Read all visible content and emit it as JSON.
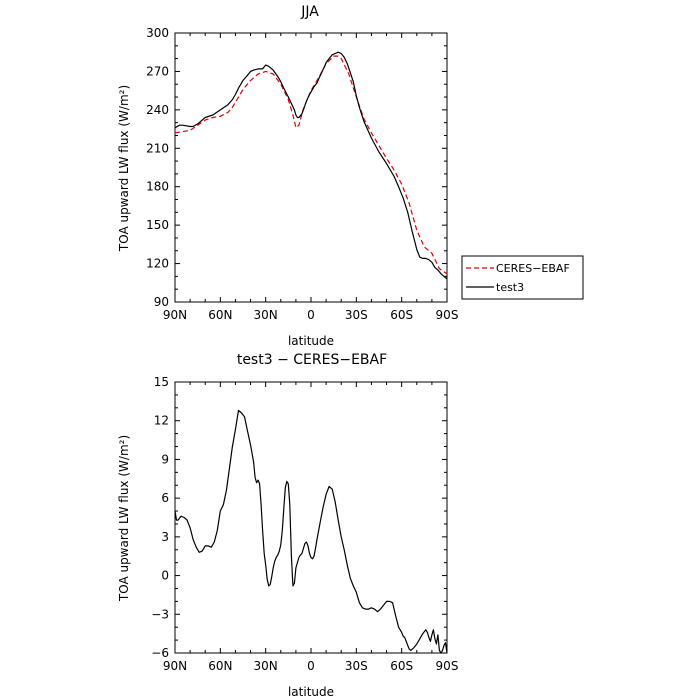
{
  "chart_data": [
    {
      "type": "line",
      "title": "JJA",
      "xlabel": "latitude",
      "ylabel": "TOA upward LW flux (W/m²)",
      "xlim": [
        90,
        -90
      ],
      "ylim": [
        90,
        300
      ],
      "x_ticks": [
        90,
        60,
        30,
        0,
        -30,
        -60,
        -90
      ],
      "x_tick_labels": [
        "90N",
        "60N",
        "30N",
        "0",
        "30S",
        "60S",
        "90S"
      ],
      "y_ticks": [
        90,
        120,
        150,
        180,
        210,
        240,
        270,
        300
      ],
      "y_tick_labels": [
        "90",
        "120",
        "150",
        "180",
        "210",
        "240",
        "270",
        "300"
      ],
      "legend": {
        "placement": "right-bottom outside",
        "entries": [
          "CERES−EBAF",
          "test3"
        ]
      },
      "series": [
        {
          "name": "CERES−EBAF",
          "color": "#e00000",
          "dash": "dashed",
          "x": [
            90,
            85,
            80,
            75,
            70,
            65,
            60,
            55,
            52,
            48,
            45,
            40,
            35,
            30,
            25,
            20,
            15,
            12,
            10,
            8,
            5,
            0,
            -5,
            -10,
            -15,
            -18,
            -20,
            -25,
            -30,
            -35,
            -40,
            -45,
            -50,
            -55,
            -60,
            -65,
            -70,
            -75,
            -80,
            -85,
            -90
          ],
          "y": [
            222,
            223,
            224,
            228,
            232,
            234,
            235,
            238,
            242,
            250,
            256,
            263,
            268,
            270,
            268,
            260,
            248,
            236,
            226,
            228,
            241,
            255,
            265,
            276,
            282,
            282,
            280,
            268,
            250,
            233,
            222,
            212,
            202,
            193,
            182,
            167,
            146,
            133,
            128,
            116,
            112
          ]
        },
        {
          "name": "test3",
          "color": "#000000",
          "dash": "solid",
          "x": [
            90,
            87,
            85,
            80,
            78,
            75,
            70,
            65,
            60,
            55,
            52,
            50,
            48,
            45,
            42,
            40,
            38,
            35,
            32,
            30,
            28,
            25,
            22,
            20,
            18,
            15,
            13,
            11,
            10,
            9,
            8,
            6,
            5,
            3,
            1,
            0,
            -2,
            -4,
            -5,
            -7,
            -9,
            -10,
            -12,
            -14,
            -16,
            -18,
            -20,
            -22,
            -24,
            -26,
            -28,
            -30,
            -32,
            -35,
            -40,
            -45,
            -50,
            -55,
            -58,
            -61,
            -64,
            -67,
            -70,
            -72,
            -74,
            -76,
            -78,
            -80,
            -82,
            -84,
            -86,
            -88,
            -90
          ],
          "y": [
            226,
            228,
            228,
            227,
            227,
            229,
            234,
            236,
            240,
            244,
            248,
            252,
            257,
            263,
            267,
            270,
            271,
            272,
            272,
            275,
            274,
            271,
            266,
            262,
            257,
            250,
            245,
            240,
            236,
            234,
            234,
            237,
            240,
            247,
            252,
            254,
            258,
            261,
            264,
            269,
            274,
            277,
            280,
            283,
            284,
            285,
            284,
            281,
            276,
            269,
            262,
            251,
            242,
            231,
            218,
            207,
            198,
            188,
            180,
            171,
            160,
            145,
            131,
            125,
            124,
            124,
            123,
            121,
            117,
            115,
            112,
            110,
            108
          ]
        }
      ]
    },
    {
      "type": "line",
      "title": "test3 − CERES−EBAF",
      "xlabel": "latitude",
      "ylabel": "TOA upward LW flux (W/m²)",
      "xlim": [
        90,
        -90
      ],
      "ylim": [
        -6,
        15
      ],
      "x_ticks": [
        90,
        60,
        30,
        0,
        -30,
        -60,
        -90
      ],
      "x_tick_labels": [
        "90N",
        "60N",
        "30N",
        "0",
        "30S",
        "60S",
        "90S"
      ],
      "y_ticks": [
        -6,
        -3,
        0,
        3,
        6,
        9,
        12,
        15
      ],
      "y_tick_labels": [
        "−6",
        "−3",
        "0",
        "3",
        "6",
        "9",
        "12",
        "15"
      ],
      "series": [
        {
          "color": "#000000",
          "dash": "solid",
          "x": [
            90,
            89,
            88,
            86,
            84,
            82,
            80,
            78,
            76,
            74,
            72,
            70,
            68,
            66,
            64,
            62,
            60,
            58,
            56,
            54,
            52,
            50,
            48,
            46,
            44,
            42,
            40,
            38,
            37,
            36,
            35,
            34,
            33,
            32,
            31,
            30,
            29,
            28,
            27,
            26,
            25,
            24,
            23,
            22,
            21,
            20,
            19,
            18,
            17,
            16,
            15,
            14,
            13,
            12,
            11,
            10,
            9,
            8,
            7,
            6,
            5,
            4,
            3,
            2,
            1,
            0,
            -1,
            -2,
            -3,
            -4,
            -6,
            -8,
            -10,
            -12,
            -14,
            -16,
            -18,
            -20,
            -22,
            -24,
            -26,
            -28,
            -30,
            -32,
            -34,
            -36,
            -38,
            -40,
            -42,
            -44,
            -46,
            -48,
            -50,
            -52,
            -54,
            -56,
            -58,
            -60,
            -61,
            -62,
            -63,
            -64,
            -65,
            -66,
            -68,
            -70,
            -72,
            -74,
            -76,
            -77,
            -78,
            -79,
            -80,
            -81,
            -82,
            -83,
            -84,
            -85,
            -86,
            -87,
            -88,
            -89,
            -90
          ],
          "y": [
            5,
            4.3,
            4.3,
            4.6,
            4.5,
            4.3,
            3.7,
            2.8,
            2.2,
            1.8,
            1.9,
            2.3,
            2.3,
            2.2,
            2.6,
            3.5,
            5,
            5.5,
            6.6,
            8.3,
            10,
            11.3,
            12.8,
            12.6,
            12.3,
            11.2,
            10.1,
            8.8,
            7.6,
            7.2,
            7.4,
            7.1,
            5.5,
            3.5,
            1.7,
            0.8,
            -0.3,
            -0.8,
            -0.7,
            -0.1,
            0.6,
            1.1,
            1.4,
            1.6,
            1.9,
            2.4,
            3.5,
            5.2,
            6.8,
            7.3,
            7.1,
            5.5,
            1.5,
            -0.8,
            -0.6,
            0.6,
            1,
            1.4,
            1.6,
            1.7,
            2.1,
            2.5,
            2.6,
            2.3,
            1.7,
            1.4,
            1.3,
            1.5,
            2.1,
            2.8,
            4.1,
            5.3,
            6.3,
            6.9,
            6.7,
            5.7,
            4.3,
            3,
            2,
            0.8,
            -0.2,
            -0.8,
            -1.3,
            -2.1,
            -2.5,
            -2.6,
            -2.6,
            -2.5,
            -2.6,
            -2.8,
            -2.6,
            -2.3,
            -2,
            -2,
            -2.1,
            -3.1,
            -4,
            -4.4,
            -4.7,
            -4.8,
            -5.1,
            -5.4,
            -5.7,
            -5.8,
            -5.6,
            -5.3,
            -4.9,
            -4.5,
            -4.2,
            -4.4,
            -4.8,
            -5.1,
            -4.6,
            -4.2,
            -4.9,
            -5.3,
            -4.6,
            -5.8,
            -6,
            -5.8,
            -5.4,
            -5.2,
            -6
          ]
        }
      ]
    }
  ]
}
